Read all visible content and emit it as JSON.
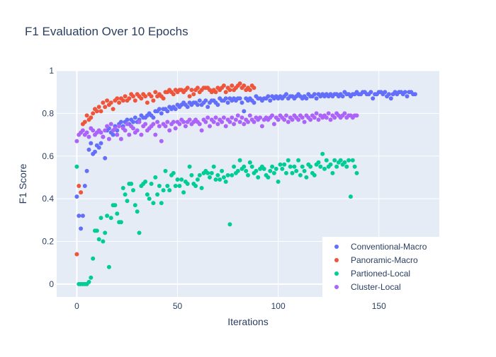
{
  "chart_data": {
    "type": "scatter",
    "title": "F1 Evaluation Over 10 Epochs",
    "xlabel": "Iterations",
    "ylabel": "F1 Score",
    "xlim": [
      -10,
      180
    ],
    "ylim": [
      -0.06,
      1.0
    ],
    "xticks": [
      0,
      50,
      100,
      150
    ],
    "yticks": [
      0,
      0.2,
      0.4,
      0.6,
      0.8,
      1
    ],
    "ytick_labels": [
      "0",
      "0.2",
      "0.4",
      "0.6",
      "0.8",
      "1"
    ],
    "grid": true,
    "legend_position": "bottom-right",
    "series": [
      {
        "name": "Conventional-Macro",
        "color": "#636efa",
        "x": [
          0,
          1,
          2,
          3,
          4,
          5,
          6,
          7,
          8,
          9,
          10,
          11,
          12,
          13,
          14,
          15,
          16,
          17,
          18,
          19,
          20,
          21,
          22,
          23,
          24,
          25,
          26,
          27,
          28,
          29,
          30,
          31,
          32,
          33,
          34,
          35,
          36,
          37,
          38,
          39,
          40,
          41,
          42,
          43,
          44,
          45,
          46,
          47,
          48,
          49,
          50,
          51,
          52,
          53,
          54,
          55,
          56,
          57,
          58,
          59,
          60,
          61,
          62,
          63,
          64,
          65,
          66,
          67,
          68,
          69,
          70,
          71,
          72,
          73,
          74,
          75,
          76,
          77,
          78,
          79,
          80,
          81,
          82,
          83,
          84,
          85,
          86,
          87,
          88,
          89,
          90,
          91,
          92,
          93,
          94,
          95,
          96,
          97,
          98,
          99,
          100,
          101,
          102,
          103,
          104,
          105,
          106,
          107,
          108,
          109,
          110,
          111,
          112,
          113,
          114,
          115,
          116,
          117,
          118,
          119,
          120,
          121,
          122,
          123,
          124,
          125,
          126,
          127,
          128,
          129,
          130,
          131,
          132,
          133,
          134,
          135,
          136,
          137,
          138,
          139,
          140,
          141,
          142,
          143,
          144,
          145,
          146,
          147,
          148,
          149,
          150,
          151,
          152,
          153,
          154,
          155,
          156,
          157,
          158,
          159,
          160,
          161,
          162,
          163,
          164,
          165,
          166,
          167,
          168
        ],
        "y": [
          0.41,
          0.32,
          0.26,
          0.32,
          0.46,
          0.53,
          0.63,
          0.66,
          0.61,
          0.62,
          0.65,
          0.64,
          0.66,
          0.69,
          0.59,
          0.72,
          0.73,
          0.71,
          0.7,
          0.74,
          0.72,
          0.75,
          0.76,
          0.74,
          0.76,
          0.77,
          0.75,
          0.77,
          0.76,
          0.78,
          0.76,
          0.77,
          0.79,
          0.78,
          0.78,
          0.79,
          0.8,
          0.79,
          0.78,
          0.81,
          0.81,
          0.82,
          0.8,
          0.82,
          0.82,
          0.81,
          0.83,
          0.82,
          0.83,
          0.82,
          0.84,
          0.83,
          0.84,
          0.85,
          0.84,
          0.83,
          0.85,
          0.84,
          0.85,
          0.85,
          0.84,
          0.86,
          0.84,
          0.85,
          0.86,
          0.83,
          0.85,
          0.86,
          0.86,
          0.85,
          0.84,
          0.87,
          0.86,
          0.86,
          0.87,
          0.85,
          0.87,
          0.86,
          0.87,
          0.86,
          0.87,
          0.87,
          0.85,
          0.81,
          0.87,
          0.86,
          0.87,
          0.86,
          0.85,
          0.88,
          0.87,
          0.87,
          0.86,
          0.87,
          0.87,
          0.88,
          0.86,
          0.88,
          0.87,
          0.88,
          0.87,
          0.88,
          0.87,
          0.88,
          0.89,
          0.87,
          0.88,
          0.88,
          0.87,
          0.88,
          0.89,
          0.88,
          0.87,
          0.88,
          0.87,
          0.89,
          0.88,
          0.88,
          0.89,
          0.87,
          0.89,
          0.88,
          0.89,
          0.88,
          0.89,
          0.88,
          0.89,
          0.88,
          0.89,
          0.89,
          0.88,
          0.89,
          0.88,
          0.9,
          0.89,
          0.89,
          0.88,
          0.89,
          0.89,
          0.9,
          0.89,
          0.89,
          0.9,
          0.9,
          0.89,
          0.89,
          0.9,
          0.87,
          0.89,
          0.89,
          0.9,
          0.9,
          0.89,
          0.9,
          0.88,
          0.89,
          0.87,
          0.89,
          0.9,
          0.89,
          0.9,
          0.9,
          0.89,
          0.9,
          0.88,
          0.9,
          0.9,
          0.89,
          0.89
        ]
      },
      {
        "name": "Panoramic-Macro",
        "color": "#ef553b",
        "x": [
          0,
          1,
          2,
          3,
          4,
          5,
          6,
          7,
          8,
          9,
          10,
          11,
          12,
          13,
          14,
          15,
          16,
          17,
          18,
          19,
          20,
          21,
          22,
          23,
          24,
          25,
          26,
          27,
          28,
          29,
          30,
          31,
          32,
          33,
          34,
          35,
          36,
          37,
          38,
          39,
          40,
          41,
          42,
          43,
          44,
          45,
          46,
          47,
          48,
          49,
          50,
          51,
          52,
          53,
          54,
          55,
          56,
          57,
          58,
          59,
          60,
          61,
          62,
          63,
          64,
          65,
          66,
          67,
          68,
          69,
          70,
          71,
          72,
          73,
          74,
          75,
          76,
          77,
          78,
          79,
          80,
          81,
          82,
          83,
          84,
          85,
          86,
          87,
          88
        ],
        "y": [
          0.14,
          0.46,
          0.43,
          0.75,
          0.76,
          0.79,
          0.77,
          0.78,
          0.8,
          0.82,
          0.81,
          0.83,
          0.81,
          0.85,
          0.83,
          0.86,
          0.84,
          0.85,
          0.82,
          0.86,
          0.87,
          0.85,
          0.87,
          0.86,
          0.88,
          0.86,
          0.87,
          0.89,
          0.88,
          0.86,
          0.89,
          0.88,
          0.87,
          0.89,
          0.88,
          0.85,
          0.89,
          0.88,
          0.86,
          0.9,
          0.88,
          0.89,
          0.88,
          0.87,
          0.9,
          0.9,
          0.91,
          0.9,
          0.89,
          0.91,
          0.9,
          0.91,
          0.91,
          0.9,
          0.91,
          0.92,
          0.88,
          0.91,
          0.89,
          0.91,
          0.92,
          0.9,
          0.91,
          0.92,
          0.92,
          0.92,
          0.91,
          0.9,
          0.91,
          0.9,
          0.92,
          0.91,
          0.92,
          0.93,
          0.9,
          0.92,
          0.91,
          0.93,
          0.91,
          0.92,
          0.93,
          0.94,
          0.92,
          0.93,
          0.91,
          0.92,
          0.91,
          0.93,
          0.92
        ]
      },
      {
        "name": "Partioned-Local",
        "color": "#00cc96",
        "x": [
          0,
          1,
          2,
          3,
          4,
          5,
          6,
          7,
          8,
          9,
          10,
          11,
          12,
          13,
          14,
          15,
          16,
          17,
          18,
          19,
          20,
          21,
          22,
          23,
          24,
          25,
          26,
          27,
          28,
          29,
          30,
          31,
          32,
          33,
          34,
          35,
          36,
          37,
          38,
          39,
          40,
          41,
          42,
          43,
          44,
          45,
          46,
          47,
          48,
          49,
          50,
          51,
          52,
          53,
          54,
          55,
          56,
          57,
          58,
          59,
          60,
          61,
          62,
          63,
          64,
          65,
          66,
          67,
          68,
          69,
          70,
          71,
          72,
          73,
          74,
          75,
          76,
          77,
          78,
          79,
          80,
          81,
          82,
          83,
          84,
          85,
          86,
          87,
          88,
          89,
          90,
          91,
          92,
          93,
          94,
          95,
          96,
          97,
          98,
          99,
          100,
          101,
          102,
          103,
          104,
          105,
          106,
          107,
          108,
          109,
          110,
          111,
          112,
          113,
          114,
          115,
          116,
          117,
          118,
          119,
          120,
          121,
          122,
          123,
          124,
          125,
          126,
          127,
          128,
          129,
          130,
          131,
          132,
          133,
          134,
          135,
          136,
          137,
          138,
          139
        ],
        "y": [
          0.55,
          0.0,
          0.0,
          0.0,
          0.0,
          0.0,
          0.01,
          0.03,
          0.12,
          0.25,
          0.25,
          0.21,
          0.31,
          0.2,
          0.24,
          0.32,
          0.08,
          0.31,
          0.37,
          0.37,
          0.33,
          0.29,
          0.29,
          0.45,
          0.42,
          0.39,
          0.47,
          0.47,
          0.44,
          0.37,
          0.34,
          0.24,
          0.46,
          0.47,
          0.48,
          0.42,
          0.4,
          0.47,
          0.38,
          0.5,
          0.42,
          0.46,
          0.38,
          0.44,
          0.53,
          0.46,
          0.44,
          0.51,
          0.52,
          0.46,
          0.49,
          0.46,
          0.49,
          0.43,
          0.48,
          0.47,
          0.55,
          0.51,
          0.47,
          0.46,
          0.49,
          0.51,
          0.45,
          0.52,
          0.53,
          0.52,
          0.5,
          0.52,
          0.55,
          0.49,
          0.51,
          0.49,
          0.53,
          0.5,
          0.48,
          0.51,
          0.28,
          0.51,
          0.55,
          0.52,
          0.53,
          0.58,
          0.54,
          0.55,
          0.53,
          0.51,
          0.57,
          0.55,
          0.52,
          0.53,
          0.5,
          0.54,
          0.55,
          0.54,
          0.51,
          0.5,
          0.53,
          0.55,
          0.52,
          0.54,
          0.48,
          0.56,
          0.54,
          0.56,
          0.52,
          0.58,
          0.55,
          0.52,
          0.55,
          0.53,
          0.58,
          0.51,
          0.55,
          0.53,
          0.5,
          0.56,
          0.55,
          0.52,
          0.51,
          0.56,
          0.57,
          0.55,
          0.61,
          0.54,
          0.58,
          0.55,
          0.56,
          0.52,
          0.58,
          0.55,
          0.57,
          0.58,
          0.56,
          0.57,
          0.55,
          0.58,
          0.41,
          0.58,
          0.55,
          0.52
        ]
      },
      {
        "name": "Cluster-Local",
        "color": "#ab63fa",
        "x": [
          0,
          1,
          2,
          3,
          4,
          5,
          6,
          7,
          8,
          9,
          10,
          11,
          12,
          13,
          14,
          15,
          16,
          17,
          18,
          19,
          20,
          21,
          22,
          23,
          24,
          25,
          26,
          27,
          28,
          29,
          30,
          31,
          32,
          33,
          34,
          35,
          36,
          37,
          38,
          39,
          40,
          41,
          42,
          43,
          44,
          45,
          46,
          47,
          48,
          49,
          50,
          51,
          52,
          53,
          54,
          55,
          56,
          57,
          58,
          59,
          60,
          61,
          62,
          63,
          64,
          65,
          66,
          67,
          68,
          69,
          70,
          71,
          72,
          73,
          74,
          75,
          76,
          77,
          78,
          79,
          80,
          81,
          82,
          83,
          84,
          85,
          86,
          87,
          88,
          89,
          90,
          91,
          92,
          93,
          94,
          95,
          96,
          97,
          98,
          99,
          100,
          101,
          102,
          103,
          104,
          105,
          106,
          107,
          108,
          109,
          110,
          111,
          112,
          113,
          114,
          115,
          116,
          117,
          118,
          119,
          120,
          121,
          122,
          123,
          124,
          125,
          126,
          127,
          128,
          129,
          130,
          131,
          132,
          133,
          134,
          135,
          136,
          137,
          138,
          139
        ],
        "y": [
          0.67,
          0.7,
          0.71,
          0.72,
          0.7,
          0.71,
          0.69,
          0.73,
          0.72,
          0.7,
          0.71,
          0.72,
          0.71,
          0.69,
          0.72,
          0.74,
          0.68,
          0.75,
          0.72,
          0.73,
          0.7,
          0.74,
          0.68,
          0.73,
          0.72,
          0.75,
          0.7,
          0.74,
          0.73,
          0.71,
          0.72,
          0.76,
          0.7,
          0.74,
          0.75,
          0.72,
          0.73,
          0.74,
          0.75,
          0.7,
          0.76,
          0.74,
          0.67,
          0.75,
          0.74,
          0.76,
          0.72,
          0.75,
          0.76,
          0.73,
          0.76,
          0.75,
          0.77,
          0.76,
          0.74,
          0.76,
          0.77,
          0.75,
          0.76,
          0.77,
          0.76,
          0.75,
          0.72,
          0.77,
          0.76,
          0.78,
          0.74,
          0.77,
          0.76,
          0.78,
          0.75,
          0.77,
          0.76,
          0.78,
          0.74,
          0.77,
          0.76,
          0.78,
          0.75,
          0.77,
          0.79,
          0.76,
          0.78,
          0.75,
          0.77,
          0.76,
          0.79,
          0.77,
          0.76,
          0.78,
          0.77,
          0.78,
          0.74,
          0.77,
          0.78,
          0.77,
          0.78,
          0.79,
          0.75,
          0.78,
          0.77,
          0.79,
          0.78,
          0.77,
          0.79,
          0.76,
          0.78,
          0.77,
          0.79,
          0.78,
          0.77,
          0.79,
          0.78,
          0.76,
          0.79,
          0.78,
          0.77,
          0.79,
          0.78,
          0.8,
          0.77,
          0.79,
          0.78,
          0.79,
          0.78,
          0.8,
          0.77,
          0.79,
          0.78,
          0.8,
          0.79,
          0.78,
          0.79,
          0.8,
          0.78,
          0.79,
          0.79,
          0.78,
          0.79,
          0.79
        ]
      }
    ]
  }
}
